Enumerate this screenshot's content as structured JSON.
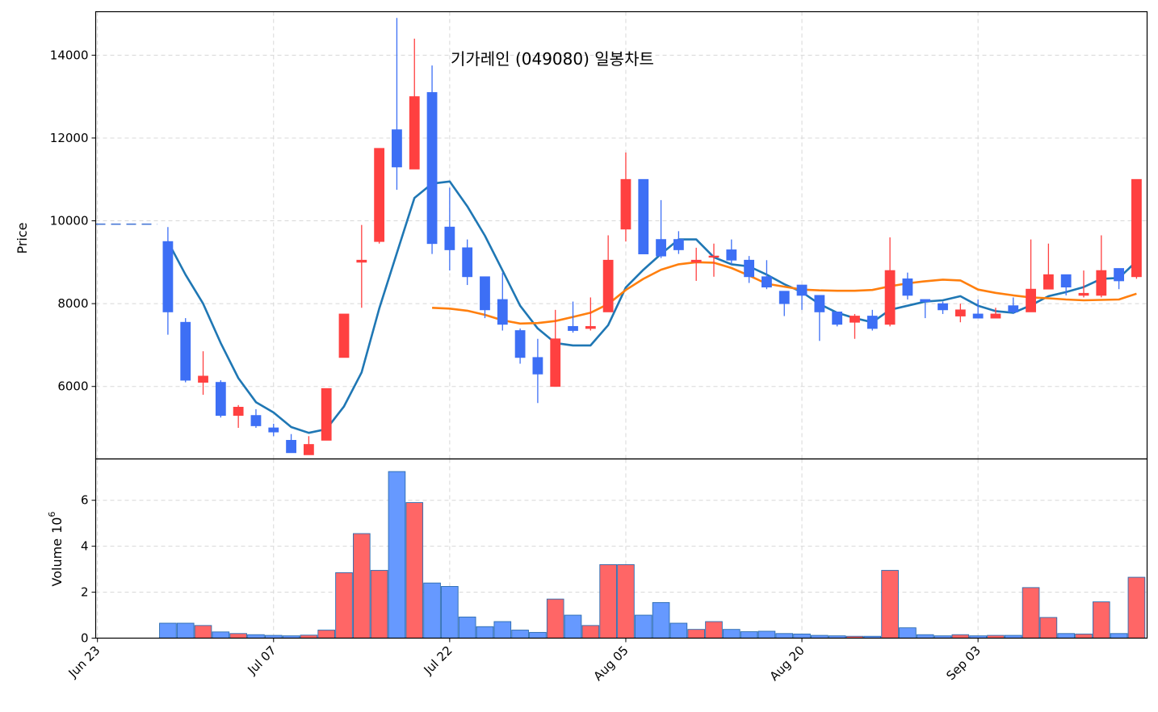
{
  "chart_data": {
    "type": "candlestick",
    "title": "기가레인 (049080) 일봉차트",
    "price_axis": {
      "label": "Price",
      "ticks": [
        6000,
        8000,
        10000,
        12000,
        14000
      ],
      "range": [
        4250,
        15050
      ]
    },
    "volume_axis": {
      "label": "Volume",
      "exponent_label": "10",
      "exponent": "6",
      "ticks": [
        0,
        2,
        4,
        6
      ],
      "range": [
        0,
        7.8
      ]
    },
    "x_ticks": [
      {
        "label": "Jun 23",
        "index": 0
      },
      {
        "label": "Jul 07",
        "index": 10
      },
      {
        "label": "Jul 22",
        "index": 20
      },
      {
        "label": "Aug 05",
        "index": 30
      },
      {
        "label": "Aug 20",
        "index": 40
      },
      {
        "label": "Sep 03",
        "index": 50
      }
    ],
    "x_range": [
      -0.1,
      59.6
    ],
    "reference_line": {
      "value": 9920,
      "from_index": -0.1,
      "to_index": 3.4,
      "color": "#4a78d6"
    },
    "colors": {
      "up": "#ff4040",
      "down": "#3d6ff5",
      "vol_up": "#ff6666",
      "vol_down": "#6699ff",
      "vol_edge": "#2b6cb0",
      "ma_short": "#1f77b4",
      "ma_long": "#ff7f0e"
    },
    "candles": [
      {
        "i": 4,
        "o": 9500,
        "h": 9850,
        "l": 7250,
        "c": 7800,
        "v": 0.65
      },
      {
        "i": 5,
        "o": 7550,
        "h": 7650,
        "l": 6100,
        "c": 6150,
        "v": 0.65
      },
      {
        "i": 6,
        "o": 6100,
        "h": 6850,
        "l": 5800,
        "c": 6250,
        "v": 0.55
      },
      {
        "i": 7,
        "o": 6100,
        "h": 6150,
        "l": 5250,
        "c": 5300,
        "v": 0.27
      },
      {
        "i": 8,
        "o": 5300,
        "h": 5550,
        "l": 5000,
        "c": 5500,
        "v": 0.2
      },
      {
        "i": 9,
        "o": 5300,
        "h": 5450,
        "l": 5000,
        "c": 5050,
        "v": 0.15
      },
      {
        "i": 10,
        "o": 5000,
        "h": 5100,
        "l": 4800,
        "c": 4900,
        "v": 0.12
      },
      {
        "i": 11,
        "o": 4700,
        "h": 4850,
        "l": 4400,
        "c": 4400,
        "v": 0.1
      },
      {
        "i": 12,
        "o": 4350,
        "h": 4800,
        "l": 4350,
        "c": 4600,
        "v": 0.13
      },
      {
        "i": 13,
        "o": 4700,
        "h": 5950,
        "l": 4700,
        "c": 5950,
        "v": 0.35
      },
      {
        "i": 14,
        "o": 6700,
        "h": 7750,
        "l": 6700,
        "c": 7750,
        "v": 2.85
      },
      {
        "i": 15,
        "o": 9000,
        "h": 9900,
        "l": 7900,
        "c": 9050,
        "v": 4.55
      },
      {
        "i": 16,
        "o": 9500,
        "h": 11750,
        "l": 9450,
        "c": 11750,
        "v": 2.95
      },
      {
        "i": 17,
        "o": 12200,
        "h": 14900,
        "l": 10750,
        "c": 11300,
        "v": 7.25
      },
      {
        "i": 18,
        "o": 11250,
        "h": 14400,
        "l": 11250,
        "c": 13000,
        "v": 5.9
      },
      {
        "i": 19,
        "o": 13100,
        "h": 13750,
        "l": 9200,
        "c": 9450,
        "v": 2.4
      },
      {
        "i": 20,
        "o": 9850,
        "h": 10800,
        "l": 8800,
        "c": 9300,
        "v": 2.25
      },
      {
        "i": 21,
        "o": 9350,
        "h": 9550,
        "l": 8450,
        "c": 8650,
        "v": 0.92
      },
      {
        "i": 22,
        "o": 8650,
        "h": 8650,
        "l": 7650,
        "c": 7850,
        "v": 0.5
      },
      {
        "i": 23,
        "o": 8100,
        "h": 8750,
        "l": 7350,
        "c": 7500,
        "v": 0.72
      },
      {
        "i": 24,
        "o": 7350,
        "h": 7400,
        "l": 6550,
        "c": 6700,
        "v": 0.35
      },
      {
        "i": 25,
        "o": 6700,
        "h": 7150,
        "l": 5600,
        "c": 6300,
        "v": 0.25
      },
      {
        "i": 26,
        "o": 6000,
        "h": 7850,
        "l": 6000,
        "c": 7150,
        "v": 1.7
      },
      {
        "i": 27,
        "o": 7450,
        "h": 8050,
        "l": 7300,
        "c": 7350,
        "v": 1.0
      },
      {
        "i": 28,
        "o": 7400,
        "h": 8150,
        "l": 7350,
        "c": 7450,
        "v": 0.55
      },
      {
        "i": 29,
        "o": 7800,
        "h": 9650,
        "l": 7800,
        "c": 9050,
        "v": 3.2
      },
      {
        "i": 30,
        "o": 9800,
        "h": 11650,
        "l": 9500,
        "c": 11000,
        "v": 3.2
      },
      {
        "i": 31,
        "o": 11000,
        "h": 11000,
        "l": 9200,
        "c": 9200,
        "v": 1.0
      },
      {
        "i": 32,
        "o": 9550,
        "h": 10500,
        "l": 9100,
        "c": 9150,
        "v": 1.55
      },
      {
        "i": 33,
        "o": 9550,
        "h": 9750,
        "l": 9200,
        "c": 9300,
        "v": 0.65
      },
      {
        "i": 34,
        "o": 9000,
        "h": 9350,
        "l": 8550,
        "c": 9050,
        "v": 0.38
      },
      {
        "i": 35,
        "o": 9150,
        "h": 9450,
        "l": 8650,
        "c": 9150,
        "v": 0.72
      },
      {
        "i": 36,
        "o": 9300,
        "h": 9550,
        "l": 8950,
        "c": 9050,
        "v": 0.38
      },
      {
        "i": 37,
        "o": 9050,
        "h": 9150,
        "l": 8500,
        "c": 8650,
        "v": 0.28
      },
      {
        "i": 38,
        "o": 8650,
        "h": 9050,
        "l": 8350,
        "c": 8400,
        "v": 0.3
      },
      {
        "i": 39,
        "o": 8300,
        "h": 8300,
        "l": 7700,
        "c": 8000,
        "v": 0.2
      },
      {
        "i": 40,
        "o": 8450,
        "h": 8450,
        "l": 7850,
        "c": 8200,
        "v": 0.18
      },
      {
        "i": 41,
        "o": 8200,
        "h": 8200,
        "l": 7100,
        "c": 7800,
        "v": 0.12
      },
      {
        "i": 42,
        "o": 7800,
        "h": 7800,
        "l": 7450,
        "c": 7500,
        "v": 0.1
      },
      {
        "i": 43,
        "o": 7550,
        "h": 7750,
        "l": 7150,
        "c": 7700,
        "v": 0.08
      },
      {
        "i": 44,
        "o": 7700,
        "h": 7850,
        "l": 7350,
        "c": 7400,
        "v": 0.08
      },
      {
        "i": 45,
        "o": 7500,
        "h": 9600,
        "l": 7450,
        "c": 8800,
        "v": 2.95
      },
      {
        "i": 46,
        "o": 8600,
        "h": 8750,
        "l": 8100,
        "c": 8200,
        "v": 0.45
      },
      {
        "i": 47,
        "o": 8100,
        "h": 8100,
        "l": 7650,
        "c": 8050,
        "v": 0.15
      },
      {
        "i": 48,
        "o": 8000,
        "h": 8050,
        "l": 7750,
        "c": 7850,
        "v": 0.1
      },
      {
        "i": 49,
        "o": 7700,
        "h": 8000,
        "l": 7550,
        "c": 7850,
        "v": 0.15
      },
      {
        "i": 50,
        "o": 7750,
        "h": 8100,
        "l": 7650,
        "c": 7650,
        "v": 0.1
      },
      {
        "i": 51,
        "o": 7650,
        "h": 7900,
        "l": 7650,
        "c": 7750,
        "v": 0.12
      },
      {
        "i": 52,
        "o": 7950,
        "h": 8150,
        "l": 7750,
        "c": 7800,
        "v": 0.12
      },
      {
        "i": 53,
        "o": 7800,
        "h": 9550,
        "l": 7800,
        "c": 8350,
        "v": 2.2
      },
      {
        "i": 54,
        "o": 8350,
        "h": 9450,
        "l": 8350,
        "c": 8700,
        "v": 0.9
      },
      {
        "i": 55,
        "o": 8700,
        "h": 8700,
        "l": 8200,
        "c": 8400,
        "v": 0.2
      },
      {
        "i": 56,
        "o": 8200,
        "h": 8800,
        "l": 8150,
        "c": 8250,
        "v": 0.18
      },
      {
        "i": 57,
        "o": 8200,
        "h": 9650,
        "l": 8150,
        "c": 8800,
        "v": 1.58
      },
      {
        "i": 58,
        "o": 8850,
        "h": 8850,
        "l": 8350,
        "c": 8550,
        "v": 0.2
      },
      {
        "i": 59,
        "o": 8650,
        "h": 10950,
        "l": 8600,
        "c": 11000,
        "v": 2.65
      }
    ],
    "series": [
      {
        "name": "",
        "type": "line",
        "x": [
          4,
          5,
          6,
          7,
          8,
          9,
          10,
          11,
          12,
          13,
          14,
          15,
          16,
          17,
          18,
          19,
          20,
          21,
          22,
          23,
          24,
          25,
          26,
          27,
          28,
          29,
          30,
          31,
          32,
          33,
          34,
          35,
          36,
          37,
          38,
          39,
          40,
          41,
          42,
          43,
          44,
          45,
          46,
          47,
          48,
          49,
          50,
          51,
          52,
          53,
          54,
          55,
          56,
          57,
          58,
          59
        ],
        "values": [
          9500,
          8700,
          8000,
          7050,
          6200,
          5620,
          5370,
          5020,
          4880,
          4970,
          5520,
          6340,
          7880,
          9220,
          10550,
          10900,
          10950,
          10350,
          9640,
          8800,
          7950,
          7400,
          7050,
          6990,
          6990,
          7480,
          8390,
          8820,
          9200,
          9550,
          9550,
          9120,
          8950,
          8900,
          8700,
          8470,
          8280,
          7990,
          7780,
          7650,
          7550,
          7850,
          7950,
          8050,
          8080,
          8180,
          7950,
          7820,
          7780,
          7960,
          8180,
          8280,
          8400,
          8600,
          8620,
          9020
        ]
      },
      {
        "name": "",
        "type": "line",
        "x": [
          19,
          20,
          21,
          22,
          23,
          24,
          25,
          26,
          27,
          28,
          29,
          30,
          31,
          32,
          33,
          34,
          35,
          36,
          37,
          38,
          39,
          40,
          41,
          42,
          43,
          44,
          45,
          46,
          47,
          48,
          49,
          50,
          51,
          52,
          53,
          54,
          55,
          56,
          57,
          58,
          59
        ],
        "values": [
          7900,
          7880,
          7830,
          7730,
          7600,
          7520,
          7530,
          7580,
          7680,
          7780,
          7990,
          8330,
          8600,
          8820,
          8950,
          9000,
          8990,
          8860,
          8680,
          8480,
          8410,
          8340,
          8320,
          8310,
          8310,
          8330,
          8420,
          8490,
          8540,
          8580,
          8560,
          8340,
          8260,
          8200,
          8150,
          8130,
          8100,
          8080,
          8090,
          8100,
          8240
        ]
      }
    ]
  }
}
